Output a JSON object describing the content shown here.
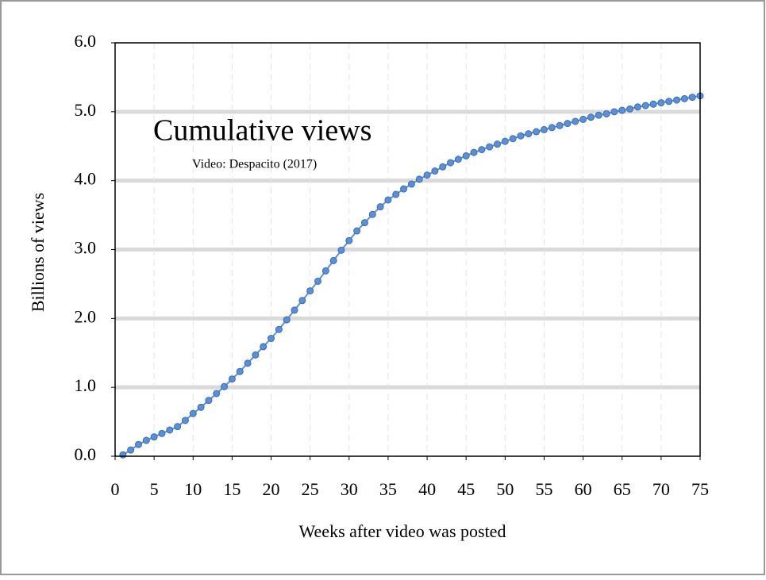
{
  "chart_data": {
    "type": "line",
    "title": "Cumulative views",
    "subtitle": "Video: Despacito (2017)",
    "x_label": "Weeks after video was posted",
    "y_label": "Billions of views",
    "x": [
      1,
      2,
      3,
      4,
      5,
      6,
      7,
      8,
      9,
      10,
      11,
      12,
      13,
      14,
      15,
      16,
      17,
      18,
      19,
      20,
      21,
      22,
      23,
      24,
      25,
      26,
      27,
      28,
      29,
      30,
      31,
      32,
      33,
      34,
      35,
      36,
      37,
      38,
      39,
      40,
      41,
      42,
      43,
      44,
      45,
      46,
      47,
      48,
      49,
      50,
      51,
      52,
      53,
      54,
      55,
      56,
      57,
      58,
      59,
      60,
      61,
      62,
      63,
      64,
      65,
      66,
      67,
      68,
      69,
      70,
      71,
      72,
      73,
      74,
      75
    ],
    "series": [
      {
        "color": "#5b8fd6",
        "values": [
          0.02,
          0.09,
          0.17,
          0.23,
          0.28,
          0.33,
          0.38,
          0.43,
          0.52,
          0.62,
          0.71,
          0.81,
          0.91,
          1.01,
          1.12,
          1.23,
          1.35,
          1.47,
          1.59,
          1.71,
          1.84,
          1.98,
          2.12,
          2.26,
          2.4,
          2.54,
          2.69,
          2.84,
          2.99,
          3.13,
          3.27,
          3.39,
          3.51,
          3.62,
          3.72,
          3.8,
          3.88,
          3.95,
          4.02,
          4.08,
          4.14,
          4.2,
          4.26,
          4.31,
          4.36,
          4.41,
          4.45,
          4.49,
          4.53,
          4.57,
          4.61,
          4.65,
          4.68,
          4.71,
          4.74,
          4.77,
          4.8,
          4.83,
          4.86,
          4.89,
          4.92,
          4.95,
          4.97,
          5.0,
          5.02,
          5.04,
          5.07,
          5.09,
          5.11,
          5.13,
          5.15,
          5.17,
          5.19,
          5.21,
          5.23
        ]
      }
    ],
    "xlim": [
      0,
      75
    ],
    "ylim": [
      0,
      6
    ],
    "xticks": [
      0,
      5,
      10,
      15,
      20,
      25,
      30,
      35,
      40,
      45,
      50,
      55,
      60,
      65,
      70,
      75
    ],
    "yticks": [
      {
        "value": 0,
        "label": "0.0"
      },
      {
        "value": 1,
        "label": "1.0"
      },
      {
        "value": 2,
        "label": "2.0"
      },
      {
        "value": 3,
        "label": "3.0"
      },
      {
        "value": 4,
        "label": "4.0"
      },
      {
        "value": 5,
        "label": "5.0"
      },
      {
        "value": 6,
        "label": "6.0"
      }
    ],
    "grid": true
  }
}
